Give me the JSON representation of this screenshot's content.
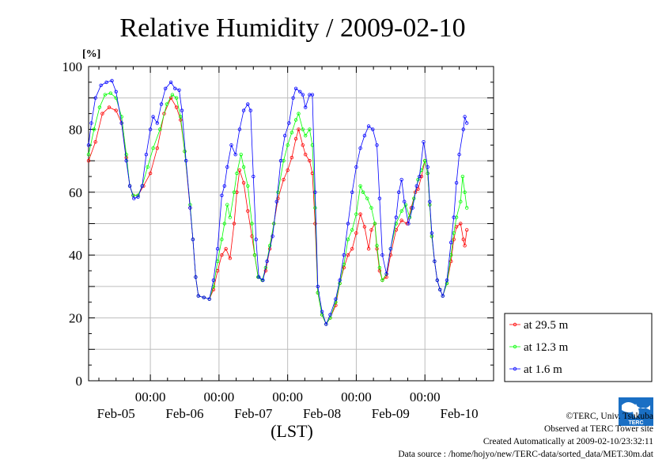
{
  "chart_data": {
    "type": "line",
    "title": "Relative Humidity / 2009-02-10",
    "ylabel": "[%]",
    "xlabel": "(LST)",
    "ylim": [
      0,
      100
    ],
    "yticks": [
      0,
      20,
      40,
      60,
      80,
      100
    ],
    "xlim_days_from_feb04_0000": [
      0.1,
      6.0
    ],
    "x_tick_times": [
      "00:00",
      "00:00",
      "00:00",
      "00:00",
      "00:00"
    ],
    "x_day_labels": [
      "Feb-05",
      "Feb-06",
      "Feb-07",
      "Feb-08",
      "Feb-09",
      "Feb-10"
    ],
    "grid": true,
    "legend_position": "bottom-right",
    "series": [
      {
        "name": "at 29.5 m",
        "color": "#ff0000",
        "points": [
          [
            0.1,
            70
          ],
          [
            0.2,
            76
          ],
          [
            0.3,
            85
          ],
          [
            0.4,
            87
          ],
          [
            0.5,
            86
          ],
          [
            0.58,
            82
          ],
          [
            0.65,
            71
          ],
          [
            0.7,
            62
          ],
          [
            0.75,
            59
          ],
          [
            0.82,
            59
          ],
          [
            0.9,
            62
          ],
          [
            1.0,
            66
          ],
          [
            1.1,
            74
          ],
          [
            1.2,
            85
          ],
          [
            1.3,
            90
          ],
          [
            1.38,
            87
          ],
          [
            1.44,
            83
          ],
          [
            1.5,
            73
          ],
          [
            1.58,
            55
          ],
          [
            1.62,
            45
          ],
          [
            1.66,
            33
          ],
          [
            1.7,
            27
          ],
          [
            1.78,
            26.5
          ],
          [
            1.86,
            26
          ],
          [
            1.92,
            29
          ],
          [
            1.98,
            35
          ],
          [
            2.04,
            40
          ],
          [
            2.1,
            42
          ],
          [
            2.16,
            39
          ],
          [
            2.22,
            50
          ],
          [
            2.26,
            60
          ],
          [
            2.3,
            67
          ],
          [
            2.36,
            63
          ],
          [
            2.42,
            54
          ],
          [
            2.48,
            46
          ],
          [
            2.52,
            40
          ],
          [
            2.57,
            33
          ],
          [
            2.63,
            32
          ],
          [
            2.68,
            35
          ],
          [
            2.74,
            42
          ],
          [
            2.8,
            50
          ],
          [
            2.86,
            58
          ],
          [
            2.94,
            64
          ],
          [
            3.0,
            67
          ],
          [
            3.06,
            71
          ],
          [
            3.12,
            77
          ],
          [
            3.16,
            80
          ],
          [
            3.22,
            75
          ],
          [
            3.26,
            72
          ],
          [
            3.32,
            70
          ],
          [
            3.36,
            66
          ],
          [
            3.4,
            50
          ],
          [
            3.44,
            28
          ],
          [
            3.5,
            21
          ],
          [
            3.56,
            18
          ],
          [
            3.62,
            20
          ],
          [
            3.7,
            24
          ],
          [
            3.76,
            31
          ],
          [
            3.82,
            36
          ],
          [
            3.88,
            40
          ],
          [
            3.94,
            42
          ],
          [
            4.0,
            47
          ],
          [
            4.06,
            53
          ],
          [
            4.12,
            49
          ],
          [
            4.18,
            42
          ],
          [
            4.22,
            48
          ],
          [
            4.27,
            50
          ],
          [
            4.3,
            42
          ],
          [
            4.34,
            35
          ],
          [
            4.38,
            32
          ],
          [
            4.44,
            33
          ],
          [
            4.5,
            40
          ],
          [
            4.58,
            48
          ],
          [
            4.66,
            51
          ],
          [
            4.74,
            50
          ],
          [
            4.8,
            55
          ],
          [
            4.86,
            60
          ],
          [
            4.9,
            61
          ],
          [
            4.95,
            65
          ],
          [
            5.0,
            70
          ],
          [
            5.04,
            66
          ],
          [
            5.07,
            56
          ],
          [
            5.1,
            46
          ],
          [
            5.14,
            38
          ],
          [
            5.18,
            32
          ],
          [
            5.22,
            29
          ],
          [
            5.26,
            27
          ],
          [
            5.32,
            31
          ],
          [
            5.38,
            38
          ],
          [
            5.42,
            45
          ],
          [
            5.46,
            49
          ],
          [
            5.52,
            50
          ],
          [
            5.56,
            45
          ],
          [
            5.58,
            43
          ],
          [
            5.61,
            48
          ]
        ]
      },
      {
        "name": "at 12.3 m",
        "color": "#00ff00",
        "points": [
          [
            0.1,
            72
          ],
          [
            0.18,
            80
          ],
          [
            0.26,
            87
          ],
          [
            0.34,
            91
          ],
          [
            0.42,
            91.5
          ],
          [
            0.5,
            90
          ],
          [
            0.58,
            84
          ],
          [
            0.65,
            72
          ],
          [
            0.7,
            62
          ],
          [
            0.75,
            59
          ],
          [
            0.82,
            59
          ],
          [
            0.88,
            62
          ],
          [
            0.96,
            68
          ],
          [
            1.04,
            74
          ],
          [
            1.14,
            80
          ],
          [
            1.24,
            88
          ],
          [
            1.32,
            91
          ],
          [
            1.38,
            90
          ],
          [
            1.44,
            84
          ],
          [
            1.5,
            73
          ],
          [
            1.58,
            56
          ],
          [
            1.62,
            45
          ],
          [
            1.66,
            33
          ],
          [
            1.7,
            27
          ],
          [
            1.78,
            26.5
          ],
          [
            1.86,
            26
          ],
          [
            1.92,
            30
          ],
          [
            1.98,
            38
          ],
          [
            2.04,
            45
          ],
          [
            2.08,
            50
          ],
          [
            2.12,
            56
          ],
          [
            2.16,
            52
          ],
          [
            2.22,
            60
          ],
          [
            2.26,
            66
          ],
          [
            2.32,
            72
          ],
          [
            2.36,
            68
          ],
          [
            2.42,
            62
          ],
          [
            2.48,
            50
          ],
          [
            2.52,
            40
          ],
          [
            2.57,
            33
          ],
          [
            2.63,
            32
          ],
          [
            2.68,
            36
          ],
          [
            2.74,
            43
          ],
          [
            2.8,
            50
          ],
          [
            2.86,
            60
          ],
          [
            2.94,
            70
          ],
          [
            3.0,
            75
          ],
          [
            3.06,
            79
          ],
          [
            3.12,
            83
          ],
          [
            3.16,
            85
          ],
          [
            3.22,
            80
          ],
          [
            3.26,
            78
          ],
          [
            3.32,
            80
          ],
          [
            3.36,
            75
          ],
          [
            3.4,
            55
          ],
          [
            3.44,
            28
          ],
          [
            3.5,
            21
          ],
          [
            3.56,
            18
          ],
          [
            3.62,
            20
          ],
          [
            3.7,
            25
          ],
          [
            3.76,
            31
          ],
          [
            3.82,
            37
          ],
          [
            3.88,
            45
          ],
          [
            3.94,
            48
          ],
          [
            4.0,
            53
          ],
          [
            4.06,
            62
          ],
          [
            4.1,
            60
          ],
          [
            4.16,
            58
          ],
          [
            4.22,
            55
          ],
          [
            4.27,
            50
          ],
          [
            4.3,
            43
          ],
          [
            4.34,
            36
          ],
          [
            4.38,
            32
          ],
          [
            4.44,
            34
          ],
          [
            4.5,
            42
          ],
          [
            4.58,
            50
          ],
          [
            4.66,
            54
          ],
          [
            4.72,
            56
          ],
          [
            4.78,
            52
          ],
          [
            4.84,
            58
          ],
          [
            4.9,
            64
          ],
          [
            4.95,
            67
          ],
          [
            5.0,
            70
          ],
          [
            5.04,
            66
          ],
          [
            5.07,
            56
          ],
          [
            5.1,
            46
          ],
          [
            5.14,
            38
          ],
          [
            5.18,
            32
          ],
          [
            5.22,
            29
          ],
          [
            5.26,
            27
          ],
          [
            5.32,
            31
          ],
          [
            5.38,
            40
          ],
          [
            5.42,
            47
          ],
          [
            5.46,
            52
          ],
          [
            5.52,
            57
          ],
          [
            5.55,
            65
          ],
          [
            5.58,
            60
          ],
          [
            5.61,
            55
          ]
        ]
      },
      {
        "name": "at 1.6 m",
        "color": "#0000ff",
        "points": [
          [
            0.1,
            75
          ],
          [
            0.14,
            82
          ],
          [
            0.2,
            90
          ],
          [
            0.28,
            94
          ],
          [
            0.36,
            95
          ],
          [
            0.44,
            95.5
          ],
          [
            0.5,
            92
          ],
          [
            0.58,
            82
          ],
          [
            0.65,
            70
          ],
          [
            0.7,
            62
          ],
          [
            0.76,
            58
          ],
          [
            0.82,
            58.5
          ],
          [
            0.88,
            62
          ],
          [
            0.94,
            72
          ],
          [
            1.0,
            80
          ],
          [
            1.04,
            84
          ],
          [
            1.1,
            82
          ],
          [
            1.16,
            88
          ],
          [
            1.22,
            93
          ],
          [
            1.3,
            95
          ],
          [
            1.36,
            93
          ],
          [
            1.42,
            92.5
          ],
          [
            1.46,
            86
          ],
          [
            1.52,
            70
          ],
          [
            1.58,
            55
          ],
          [
            1.62,
            45
          ],
          [
            1.66,
            33
          ],
          [
            1.7,
            27
          ],
          [
            1.78,
            26.5
          ],
          [
            1.86,
            26
          ],
          [
            1.92,
            32
          ],
          [
            1.98,
            42
          ],
          [
            2.04,
            59
          ],
          [
            2.08,
            62
          ],
          [
            2.12,
            68
          ],
          [
            2.18,
            75
          ],
          [
            2.24,
            72
          ],
          [
            2.3,
            80
          ],
          [
            2.36,
            86
          ],
          [
            2.42,
            88
          ],
          [
            2.46,
            86
          ],
          [
            2.5,
            65
          ],
          [
            2.54,
            45
          ],
          [
            2.58,
            33
          ],
          [
            2.64,
            32
          ],
          [
            2.7,
            38
          ],
          [
            2.78,
            46
          ],
          [
            2.84,
            57
          ],
          [
            2.9,
            70
          ],
          [
            2.96,
            78
          ],
          [
            3.02,
            82
          ],
          [
            3.08,
            90
          ],
          [
            3.12,
            93
          ],
          [
            3.18,
            92
          ],
          [
            3.22,
            91
          ],
          [
            3.26,
            87
          ],
          [
            3.32,
            91
          ],
          [
            3.36,
            91
          ],
          [
            3.4,
            60
          ],
          [
            3.44,
            30
          ],
          [
            3.5,
            22
          ],
          [
            3.56,
            18
          ],
          [
            3.62,
            21
          ],
          [
            3.7,
            26
          ],
          [
            3.76,
            32
          ],
          [
            3.82,
            40
          ],
          [
            3.88,
            50
          ],
          [
            3.94,
            60
          ],
          [
            4.0,
            68
          ],
          [
            4.06,
            74
          ],
          [
            4.12,
            78
          ],
          [
            4.18,
            81
          ],
          [
            4.24,
            80
          ],
          [
            4.3,
            75
          ],
          [
            4.34,
            58
          ],
          [
            4.38,
            40
          ],
          [
            4.44,
            34
          ],
          [
            4.5,
            42
          ],
          [
            4.58,
            52
          ],
          [
            4.62,
            60
          ],
          [
            4.66,
            64
          ],
          [
            4.7,
            57
          ],
          [
            4.76,
            50
          ],
          [
            4.82,
            55
          ],
          [
            4.88,
            62
          ],
          [
            4.92,
            65
          ],
          [
            4.98,
            76
          ],
          [
            5.04,
            68
          ],
          [
            5.07,
            57
          ],
          [
            5.1,
            47
          ],
          [
            5.14,
            38
          ],
          [
            5.18,
            32
          ],
          [
            5.22,
            29
          ],
          [
            5.26,
            27
          ],
          [
            5.32,
            32
          ],
          [
            5.38,
            44
          ],
          [
            5.42,
            52
          ],
          [
            5.46,
            63
          ],
          [
            5.5,
            72
          ],
          [
            5.56,
            80
          ],
          [
            5.58,
            84
          ],
          [
            5.61,
            82
          ]
        ]
      }
    ]
  },
  "footer": {
    "copyright": "©TERC, Univ. Tsukuba",
    "observed": "Observed at TERC Tower site",
    "created": "Created Automatically at 2009-02-10/23:32:11",
    "source": "Data source : /home/hojyo/new/TERC-data/sorted_data/MET.30m.dat"
  },
  "logo_text": "TERC"
}
